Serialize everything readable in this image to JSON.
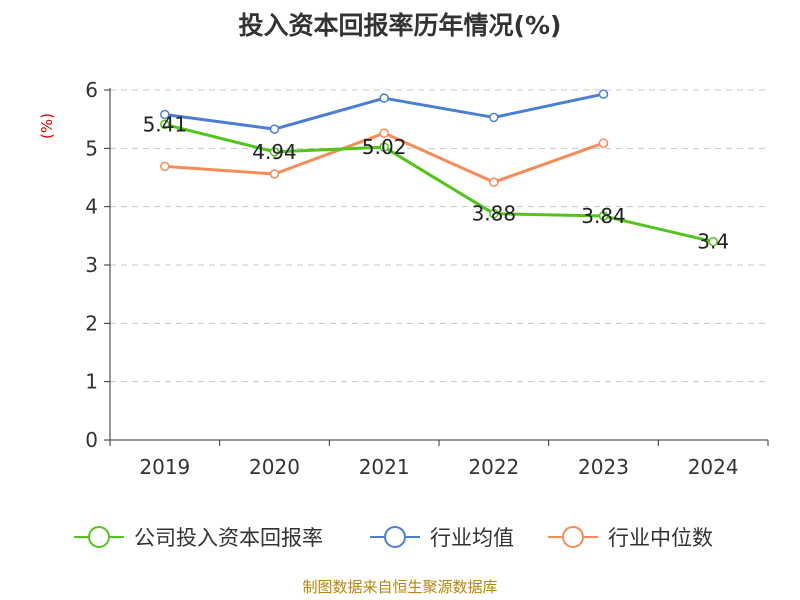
{
  "chart_data": {
    "type": "line",
    "title": "投入资本回报率历年情况(%)",
    "ylabel": "(%)",
    "xlabel": "",
    "categories": [
      "2019",
      "2020",
      "2021",
      "2022",
      "2023",
      "2024"
    ],
    "ylim": [
      0,
      6
    ],
    "yticks": [
      "0",
      "1",
      "2",
      "3",
      "4",
      "5",
      "6"
    ],
    "grid": true,
    "legend_position": "bottom",
    "series": [
      {
        "name": "公司投入资本回报率",
        "color": "#52c41a",
        "values": [
          5.41,
          4.94,
          5.02,
          3.88,
          3.84,
          3.4
        ],
        "labels": [
          "5.41",
          "4.94",
          "5.02",
          "3.88",
          "3.84",
          "3.4"
        ]
      },
      {
        "name": "行业均值",
        "color": "#4a7fd4",
        "values": [
          5.58,
          5.33,
          5.86,
          5.53,
          5.93,
          null
        ]
      },
      {
        "name": "行业中位数",
        "color": "#f58c5a",
        "values": [
          4.69,
          4.56,
          5.26,
          4.42,
          5.09,
          null
        ]
      }
    ]
  },
  "source": "制图数据来自恒生聚源数据库"
}
